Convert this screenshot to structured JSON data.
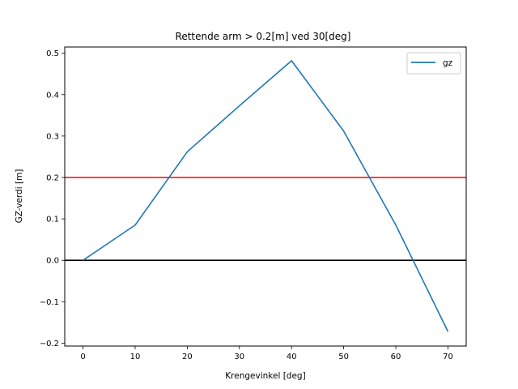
{
  "chart_data": {
    "type": "line",
    "title": "Rettende arm > 0.2[m] ved 30[deg]",
    "xlabel": "Krengevinkel [deg]",
    "ylabel": "GZ-verdi [m]",
    "xlim": [
      -3.5,
      73.5
    ],
    "ylim": [
      -0.207,
      0.515
    ],
    "xticks": [
      0,
      10,
      20,
      30,
      40,
      50,
      60,
      70
    ],
    "yticks": [
      -0.2,
      -0.1,
      0.0,
      0.1,
      0.2,
      0.3,
      0.4,
      0.5
    ],
    "ytick_labels": [
      "−0.2",
      "−0.1",
      "0.0",
      "0.1",
      "0.2",
      "0.3",
      "0.4",
      "0.5"
    ],
    "series": [
      {
        "name": "gz",
        "color": "#1f77b4",
        "x": [
          0,
          10,
          20,
          30,
          40,
          50,
          60,
          70
        ],
        "y": [
          0.0,
          0.085,
          0.262,
          0.373,
          0.482,
          0.312,
          0.085,
          -0.172
        ]
      }
    ],
    "hlines": [
      {
        "y": 0.2,
        "color": "#ff0000"
      },
      {
        "y": 0.0,
        "color": "#000000"
      }
    ],
    "legend": {
      "placement": "top-right"
    },
    "grid": false
  }
}
